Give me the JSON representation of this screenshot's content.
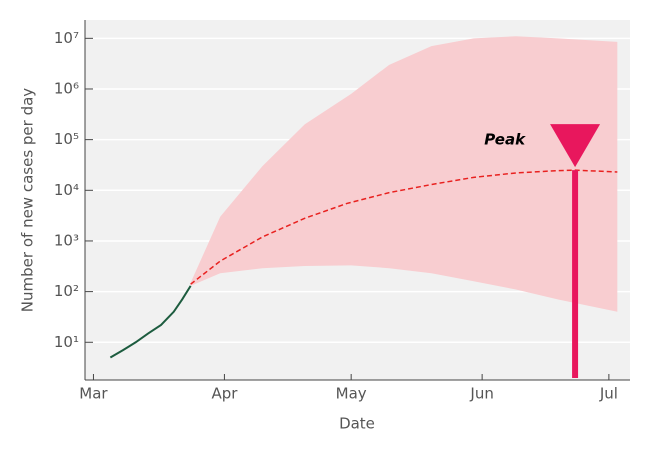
{
  "chart_data": {
    "type": "line",
    "x_label": "Date",
    "y_label": "Number of new cases per day",
    "log_y": true,
    "grid": true,
    "xlim": [
      -2,
      127
    ],
    "ylim": [
      1.8,
      23000000
    ],
    "xticks": [
      {
        "value": 0,
        "label": "Mar"
      },
      {
        "value": 31,
        "label": "Apr"
      },
      {
        "value": 61,
        "label": "May"
      },
      {
        "value": 92,
        "label": "Jun"
      },
      {
        "value": 122,
        "label": "Jul"
      }
    ],
    "yticks": [
      {
        "value": 10,
        "label": "10¹"
      },
      {
        "value": 100,
        "label": "10²"
      },
      {
        "value": 1000,
        "label": "10³"
      },
      {
        "value": 10000,
        "label": "10⁴"
      },
      {
        "value": 100000,
        "label": "10⁵"
      },
      {
        "value": 1000000,
        "label": "10⁶"
      },
      {
        "value": 10000000,
        "label": "10⁷"
      }
    ],
    "band": {
      "color": "#f8cdd0",
      "x": [
        23,
        30,
        40,
        50,
        61,
        70,
        80,
        90,
        100,
        110,
        124
      ],
      "upper": [
        150,
        3000,
        30000,
        200000,
        800000,
        3000000,
        7000000,
        10000000,
        11000000,
        10000000,
        8500000
      ],
      "lower": [
        130,
        230,
        290,
        320,
        330,
        290,
        230,
        160,
        110,
        70,
        40
      ]
    },
    "series": [
      {
        "color": "#1d5c3f",
        "dashed": false,
        "x": [
          4,
          7,
          10,
          13,
          16,
          19,
          21,
          23
        ],
        "values": [
          5,
          7,
          10,
          15,
          22,
          40,
          70,
          130
        ]
      },
      {
        "color": "#e8211f",
        "dashed": true,
        "x": [
          23,
          30,
          40,
          50,
          60,
          70,
          80,
          90,
          100,
          110,
          114,
          124
        ],
        "values": [
          140,
          400,
          1200,
          2800,
          5500,
          9000,
          13000,
          18000,
          22000,
          24500,
          25000,
          23000
        ]
      }
    ],
    "annotation": {
      "text": "Peak",
      "x": 114,
      "value": 25000,
      "color": "#e8175d"
    }
  }
}
